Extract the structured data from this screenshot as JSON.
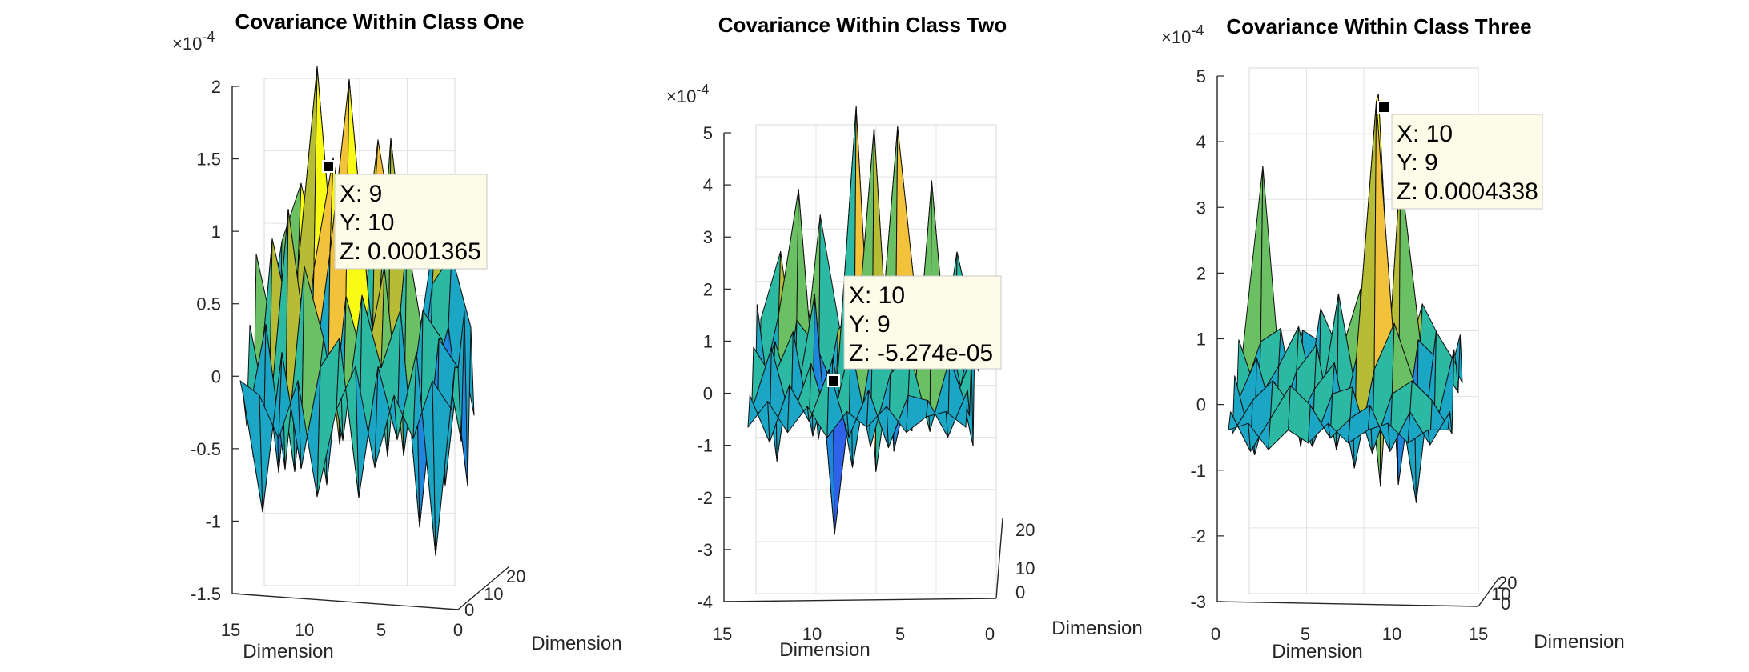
{
  "chart_data": [
    {
      "type": "surface",
      "title": "Covariance Within Class One",
      "xlabel": "Dimension",
      "ylabel": "Dimension",
      "z_exponent": "×10",
      "z_exponent_power": "-4",
      "zlim": [
        -1.5,
        2
      ],
      "z_ticks": [
        "-1.5",
        "-1",
        "-0.5",
        "0",
        "0.5",
        "1",
        "1.5",
        "2"
      ],
      "x_ticks": [
        "15",
        "10",
        "5",
        "0"
      ],
      "y_ticks": [
        "0",
        "10",
        "20"
      ],
      "grid": true,
      "datatip": {
        "x": "X: 9",
        "y": "Y: 10",
        "z": "Z: 0.0001365"
      },
      "surface_z_values": [
        [
          -0.3,
          0.6,
          1.0,
          0.4,
          -0.8,
          0.2,
          1.3,
          0.5,
          -0.2,
          0.7,
          0.1,
          -0.6
        ],
        [
          0.2,
          -0.9,
          0.5,
          1.9,
          0.3,
          -0.5,
          1.0,
          0.2,
          -0.7,
          0.4,
          0.6,
          0.1
        ],
        [
          0.7,
          0.1,
          -0.8,
          0.6,
          1.365,
          0.4,
          -0.4,
          1.5,
          0.3,
          -0.3,
          0.2,
          -0.9
        ],
        [
          -0.6,
          0.9,
          0.3,
          -0.2,
          0.8,
          2.0,
          0.5,
          -0.6,
          0.9,
          0.1,
          -0.8,
          0.4
        ],
        [
          0.4,
          -0.3,
          1.2,
          0.2,
          -0.7,
          0.6,
          0.1,
          0.8,
          -0.5,
          0.5,
          0.3,
          -0.4
        ],
        [
          -0.2,
          0.5,
          -0.5,
          0.9,
          0.4,
          -0.3,
          0.7,
          0.2,
          0.6,
          -0.9,
          0.4,
          0.2
        ],
        [
          0.1,
          -0.7,
          0.4,
          -0.4,
          0.3,
          0.5,
          -0.6,
          0.3,
          -0.2,
          0.4,
          -1.0,
          0.3
        ],
        [
          0.3,
          0.2,
          -0.1,
          0.3,
          -0.5,
          0.1,
          0.4,
          -0.3,
          0.2,
          -0.1,
          0.3,
          0.1
        ]
      ]
    },
    {
      "type": "surface",
      "title": "Covariance Within Class Two",
      "xlabel": "Dimension",
      "ylabel": "Dimension",
      "z_exponent": "×10",
      "z_exponent_power": "-4",
      "zlim": [
        -4,
        5
      ],
      "z_ticks": [
        "-4",
        "-3",
        "-2",
        "-1",
        "0",
        "1",
        "2",
        "3",
        "4",
        "5"
      ],
      "x_ticks": [
        "15",
        "10",
        "5",
        "0"
      ],
      "y_ticks": [
        "0",
        "10",
        "20"
      ],
      "grid": true,
      "datatip": {
        "x": "X: 10",
        "y": "Y: 9",
        "z": "Z: -5.274e-05"
      },
      "surface_z_values": [
        [
          0.5,
          1.8,
          -1.0,
          2.5,
          0.3,
          -0.8,
          1.2,
          0.2,
          -1.5,
          0.6,
          0.4,
          -0.5
        ],
        [
          -0.9,
          0.8,
          3.2,
          -1.6,
          0.5,
          1.0,
          -0.3,
          4.4,
          0.8,
          -0.6,
          2.0,
          0.3
        ],
        [
          1.2,
          -1.8,
          0.9,
          0.4,
          -0.53,
          5.0,
          -2.0,
          0.7,
          1.5,
          0.2,
          -0.9,
          1.0
        ],
        [
          -0.4,
          0.7,
          -0.6,
          1.6,
          -3.0,
          0.2,
          4.8,
          -1.4,
          0.3,
          0.9,
          0.5,
          -1.3
        ],
        [
          0.8,
          0.2,
          1.1,
          -0.9,
          0.6,
          -1.5,
          0.8,
          0.4,
          -0.8,
          4.0,
          -0.4,
          0.6
        ],
        [
          -0.2,
          1.0,
          -0.4,
          0.7,
          -0.6,
          1.1,
          -0.9,
          0.5,
          0.9,
          -0.6,
          0.8,
          -0.3
        ],
        [
          0.3,
          -0.6,
          0.5,
          -0.2,
          0.8,
          -0.5,
          0.4,
          -0.7,
          0.3,
          0.2,
          -0.5,
          0.4
        ],
        [
          -0.1,
          0.4,
          -0.2,
          0.3,
          -0.3,
          0.2,
          -0.1,
          0.3,
          -0.2,
          0.1,
          0.2,
          -0.1
        ]
      ]
    },
    {
      "type": "surface",
      "title": "Covariance Within Class Three",
      "xlabel": "Dimension",
      "ylabel": "Dimension",
      "z_exponent": "×10",
      "z_exponent_power": "-4",
      "zlim": [
        -3,
        5
      ],
      "z_ticks": [
        "-3",
        "-2",
        "-1",
        "0",
        "1",
        "2",
        "3",
        "4",
        "5"
      ],
      "x_ticks": [
        "0",
        "5",
        "10",
        "15"
      ],
      "y_ticks": [
        "0",
        "10",
        "20"
      ],
      "grid": true,
      "datatip": {
        "x": "X: 10",
        "y": "Y: 9",
        "z": "Z: 0.0004338"
      },
      "surface_z_values": [
        [
          0.1,
          2.9,
          -0.8,
          0.4,
          0.2,
          -0.5,
          0.3,
          0.6,
          -0.3,
          0.8,
          0.2,
          -0.4
        ],
        [
          -0.5,
          0.4,
          0.6,
          -1.2,
          0.9,
          0.2,
          1.2,
          -1.8,
          3.0,
          0.4,
          -0.7,
          0.5
        ],
        [
          0.6,
          -0.3,
          0.2,
          0.8,
          -0.6,
          1.3,
          -0.4,
          4.338,
          -1.6,
          0.6,
          0.3,
          -0.2
        ],
        [
          -0.2,
          0.5,
          -0.6,
          0.3,
          0.7,
          -0.9,
          0.5,
          4.4,
          0.2,
          -1.7,
          0.9,
          0.4
        ],
        [
          0.4,
          -0.8,
          0.3,
          -0.4,
          0.2,
          0.6,
          -1.0,
          0.5,
          1.2,
          0.3,
          -0.5,
          0.8
        ],
        [
          -0.3,
          0.2,
          0.5,
          0.1,
          -0.5,
          0.3,
          0.4,
          -0.6,
          0.3,
          0.5,
          0.2,
          -0.3
        ],
        [
          0.2,
          -0.4,
          0.1,
          0.6,
          0.3,
          -0.2,
          0.1,
          0.3,
          -0.4,
          0.2,
          -0.3,
          0.2
        ],
        [
          0.1,
          0.2,
          -0.2,
          0.1,
          -0.1,
          0.2,
          -0.1,
          0.1,
          0.2,
          -0.1,
          0.1,
          0.1
        ]
      ]
    }
  ]
}
